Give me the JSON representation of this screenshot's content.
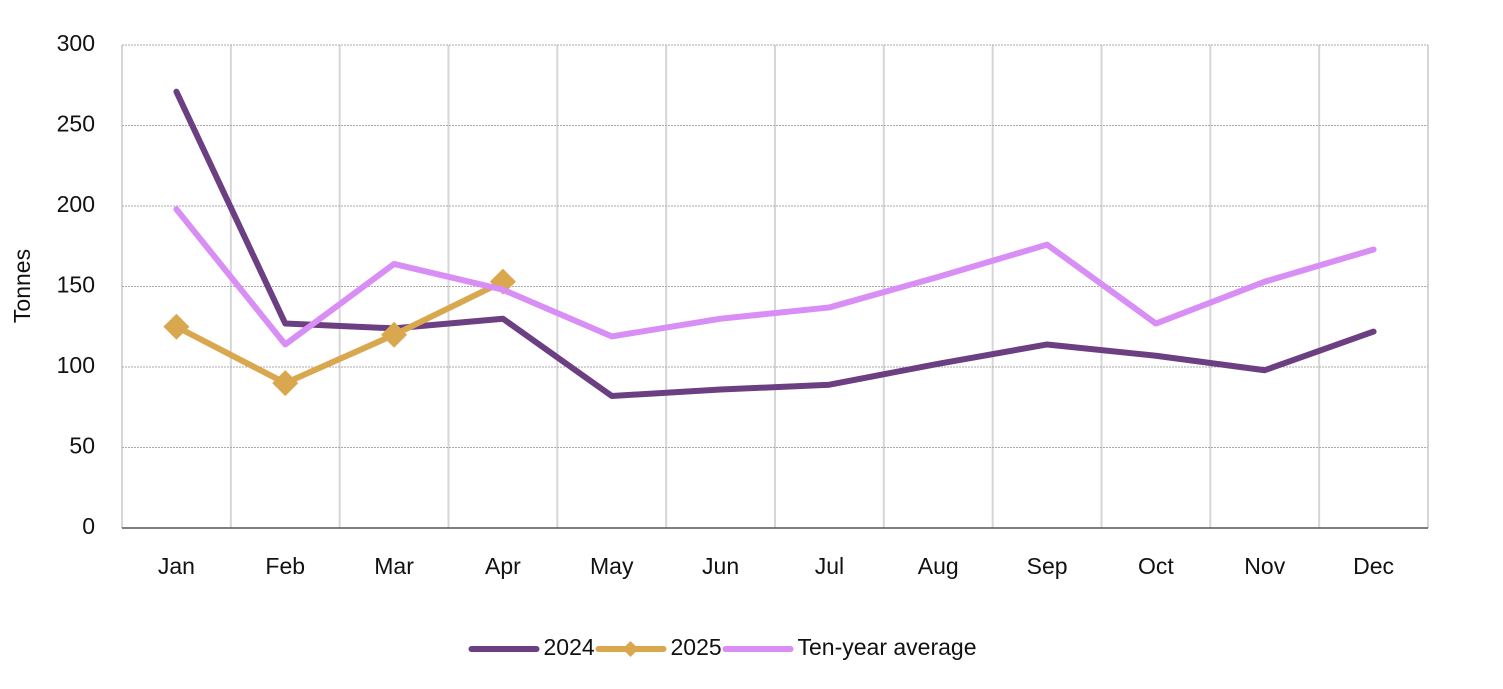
{
  "chart_data": {
    "type": "line",
    "y_label": "Tonnes",
    "categories": [
      "Jan",
      "Feb",
      "Mar",
      "Apr",
      "May",
      "Jun",
      "Jul",
      "Aug",
      "Sep",
      "Oct",
      "Nov",
      "Dec"
    ],
    "series": [
      {
        "name": "2024",
        "color": "#6b3f82",
        "values": [
          271,
          127,
          124,
          130,
          82,
          86,
          89,
          102,
          114,
          107,
          98,
          122
        ]
      },
      {
        "name": "2025",
        "color": "#d9a84e",
        "marker": "diamond",
        "values": [
          125,
          90,
          120,
          153,
          null,
          null,
          null,
          null,
          null,
          null,
          null,
          null
        ]
      },
      {
        "name": "Ten-year average",
        "color": "#d88ef5",
        "values": [
          198,
          114,
          164,
          148,
          119,
          130,
          137,
          156,
          176,
          127,
          153,
          173
        ]
      }
    ],
    "ylim": [
      0,
      300
    ],
    "yticks": [
      0,
      50,
      100,
      150,
      200,
      250,
      300
    ],
    "grid": true,
    "legend": "bottom"
  }
}
